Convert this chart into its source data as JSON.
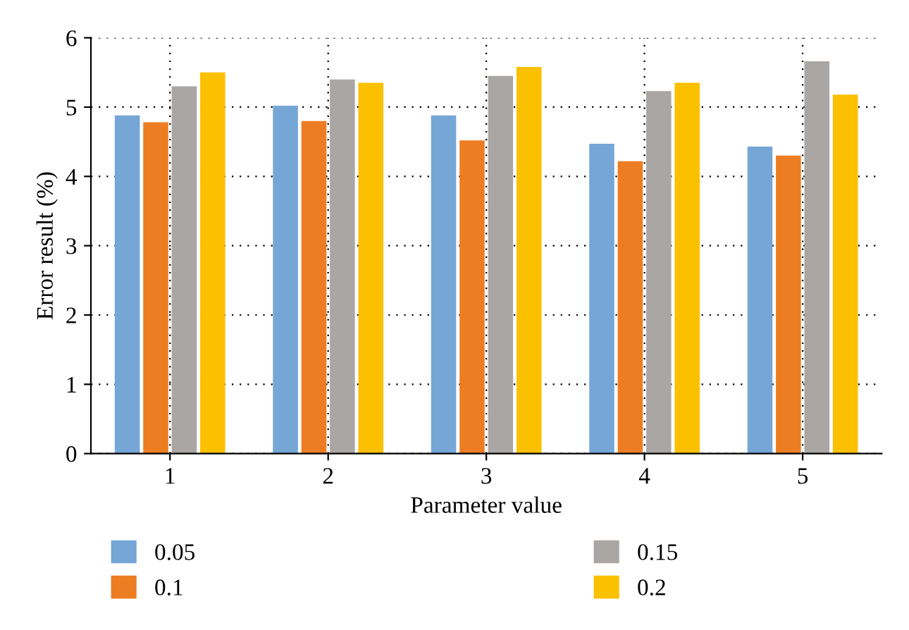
{
  "chart_data": {
    "type": "bar",
    "xlabel": "Parameter value",
    "ylabel": "Error result (%)",
    "categories": [
      "1",
      "2",
      "3",
      "4",
      "5"
    ],
    "series": [
      {
        "name": "0.05",
        "color": "#75a6d6",
        "values": [
          4.88,
          5.02,
          4.88,
          4.47,
          4.43
        ]
      },
      {
        "name": "0.1",
        "color": "#ed7d22",
        "values": [
          4.78,
          4.8,
          4.52,
          4.22,
          4.3
        ]
      },
      {
        "name": "0.15",
        "color": "#a9a6a4",
        "values": [
          5.3,
          5.4,
          5.45,
          5.23,
          5.66
        ]
      },
      {
        "name": "0.2",
        "color": "#fbc000",
        "values": [
          5.5,
          5.35,
          5.58,
          5.35,
          5.18
        ]
      }
    ],
    "ylim": [
      0,
      6
    ],
    "yticks": [
      0,
      1,
      2,
      3,
      4,
      5,
      6
    ],
    "grid": true,
    "legend": "bottom"
  }
}
